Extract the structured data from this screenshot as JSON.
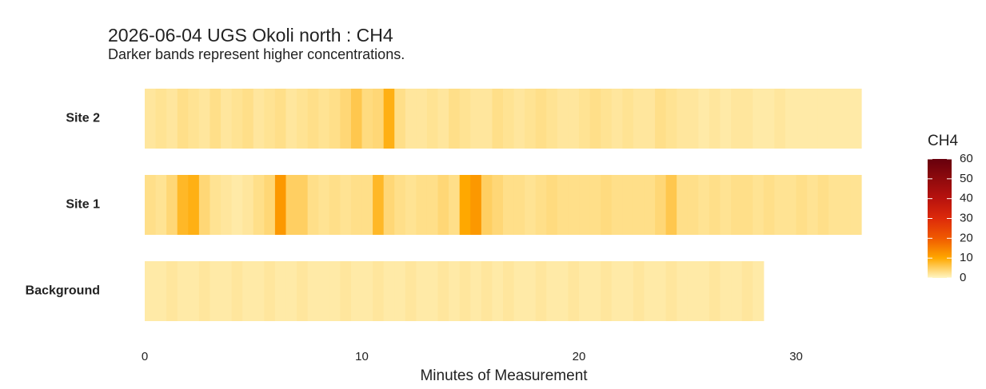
{
  "chart_data": {
    "type": "heatmap",
    "title": "2026-06-04 UGS Okoli north : CH4",
    "subtitle": "Darker bands represent higher concentrations.",
    "x_label": "Minutes of Measurement",
    "x": [
      0,
      0.5,
      1,
      1.5,
      2,
      2.5,
      3,
      3.5,
      4,
      4.5,
      5,
      5.5,
      6,
      6.5,
      7,
      7.5,
      8,
      8.5,
      9,
      9.5,
      10,
      10.5,
      11,
      11.5,
      12,
      12.5,
      13,
      13.5,
      14,
      14.5,
      15,
      15.5,
      16,
      16.5,
      17,
      17.5,
      18,
      18.5,
      19,
      19.5,
      20,
      20.5,
      21,
      21.5,
      22,
      22.5,
      23,
      23.5,
      24,
      24.5,
      25,
      25.5,
      26,
      26.5,
      27,
      27.5,
      28,
      28.5,
      29,
      29.5,
      30,
      30.5,
      31,
      31.5,
      32,
      32.5
    ],
    "series": [
      {
        "name": "Site 2",
        "values": [
          2,
          2.5,
          2,
          3,
          2.5,
          2,
          3,
          2,
          2.5,
          3,
          2,
          2.5,
          3,
          2,
          2.5,
          3,
          2.5,
          3,
          4,
          6,
          3.5,
          4,
          9,
          3,
          2,
          2,
          2.5,
          2,
          3,
          2.5,
          2,
          2,
          3,
          2.5,
          2,
          2.5,
          3,
          2.5,
          2,
          2,
          2.5,
          3,
          2.5,
          2,
          2.5,
          2,
          2,
          3,
          2.5,
          2,
          2,
          1.5,
          2,
          1.5,
          2,
          2,
          1.5,
          1.5,
          2,
          1.5,
          1.5,
          1.5,
          1.5,
          1.5,
          1.5,
          1.5
        ]
      },
      {
        "name": "Site 1",
        "values": [
          3,
          2.5,
          4,
          8,
          9,
          4,
          2.5,
          2,
          1.5,
          2,
          3,
          4,
          12,
          5,
          5,
          3,
          2.5,
          3,
          2.5,
          3,
          3,
          8,
          4,
          3,
          2.5,
          3,
          3,
          4,
          3,
          10,
          12,
          5,
          4,
          3,
          3,
          2.5,
          3,
          3.5,
          3,
          3,
          3,
          3,
          3.5,
          3,
          3,
          3,
          3,
          4,
          6,
          3,
          3,
          2.5,
          3,
          2.5,
          3,
          3,
          2.5,
          3,
          2.5,
          2.5,
          3,
          2.5,
          3,
          2.5,
          2.5,
          2.5
        ]
      },
      {
        "name": "Background",
        "values": [
          1.5,
          1.5,
          2,
          1.5,
          1.5,
          2,
          1.5,
          1.5,
          2,
          1.5,
          1.5,
          2,
          1.5,
          1.5,
          2,
          1.5,
          1.5,
          1.5,
          2,
          1.5,
          1.5,
          2,
          1.5,
          1.5,
          2,
          1.5,
          1.5,
          2,
          1.5,
          2,
          1.5,
          2,
          1.5,
          2,
          1.5,
          1.5,
          2,
          1.5,
          1.5,
          2,
          1.5,
          1.5,
          2,
          1.5,
          1.5,
          2,
          1.5,
          1.5,
          2,
          1.5,
          1.5,
          1.5,
          2,
          1.5,
          1.5,
          2,
          1.5,
          null,
          null,
          null,
          null,
          null,
          null,
          null,
          null,
          null
        ]
      }
    ],
    "xlim": [
      0,
      33
    ],
    "xticks": [
      0,
      10,
      20,
      30
    ],
    "colorbar_title": "CH4",
    "clim": [
      0,
      60
    ],
    "cticks": [
      0,
      10,
      20,
      30,
      40,
      50,
      60
    ],
    "colorscale": [
      "#fff6c4",
      "#ffa800",
      "#f05a00",
      "#dd2a0a",
      "#b8120e",
      "#8f0a0d",
      "#67000d"
    ]
  }
}
